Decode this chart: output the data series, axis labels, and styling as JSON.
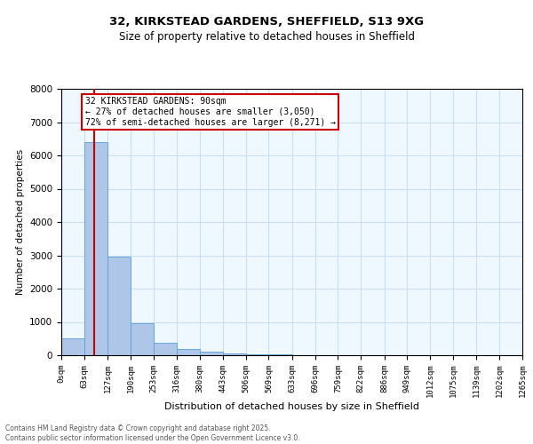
{
  "title1": "32, KIRKSTEAD GARDENS, SHEFFIELD, S13 9XG",
  "title2": "Size of property relative to detached houses in Sheffield",
  "xlabel": "Distribution of detached houses by size in Sheffield",
  "ylabel": "Number of detached properties",
  "annotation_line1": "32 KIRKSTEAD GARDENS: 90sqm",
  "annotation_line2": "← 27% of detached houses are smaller (3,050)",
  "annotation_line3": "72% of semi-detached houses are larger (8,271) →",
  "property_size_sqm": 90,
  "bin_edges": [
    0,
    63,
    127,
    190,
    253,
    316,
    380,
    443,
    506,
    569,
    633,
    696,
    759,
    822,
    886,
    949,
    1012,
    1075,
    1139,
    1202,
    1265
  ],
  "bar_heights": [
    500,
    6400,
    2950,
    950,
    370,
    200,
    120,
    60,
    30,
    15,
    10,
    5,
    3,
    2,
    1,
    1,
    0,
    0,
    0,
    0
  ],
  "bar_color": "#aec6e8",
  "bar_edge_color": "#5a9fd4",
  "vline_color": "#cc0000",
  "ylim": [
    0,
    8000
  ],
  "yticks": [
    0,
    1000,
    2000,
    3000,
    4000,
    5000,
    6000,
    7000,
    8000
  ],
  "annotation_box_edgecolor": "#cc0000",
  "grid_color": "#c8e0f0",
  "footnote1": "Contains HM Land Registry data © Crown copyright and database right 2025.",
  "footnote2": "Contains public sector information licensed under the Open Government Licence v3.0.",
  "bg_color": "#f0f8ff"
}
